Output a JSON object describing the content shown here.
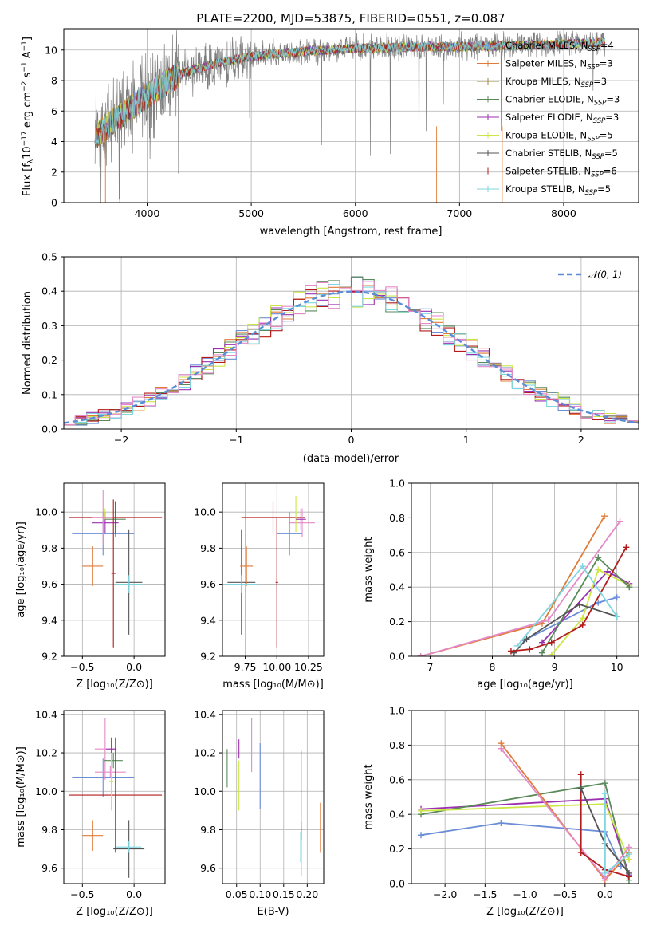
{
  "chart_data": [
    {
      "id": "spectrum",
      "type": "line",
      "title": "PLATE=2200, MJD=53875, FIBERID=0551, z=0.087",
      "xlabel": "wavelength [Angstrom, rest frame]",
      "ylabel": "Flux [f$_\\lambda$10$^{-17}$ erg cm$^{-2}$ s$^{-1}$ A$^{-1}$]",
      "xlim": [
        3200,
        8720
      ],
      "ylim": [
        0,
        11.4
      ],
      "xticks": [
        4000,
        5000,
        6000,
        7000,
        8000
      ],
      "yticks": [
        0,
        2,
        4,
        6,
        8,
        10
      ],
      "grid": true,
      "legend_position": "right",
      "continuum_model": {
        "x": [
          3500,
          3700,
          4000,
          4300,
          4600,
          5000,
          5500,
          6000,
          6500,
          7000,
          7500,
          8000,
          8400
        ],
        "y": [
          4.3,
          5.5,
          7.0,
          8.4,
          9.0,
          9.6,
          9.9,
          10.1,
          10.2,
          10.2,
          10.3,
          10.4,
          10.5
        ]
      },
      "series": [
        {
          "name": "Chabrier MILES, N$_{SSP}$=4",
          "color": "#6b8dd6",
          "marker": "+"
        },
        {
          "name": "Salpeter MILES, N$_{SSP}$=3",
          "color": "#e07b39",
          "marker": "+"
        },
        {
          "name": "Kroupa MILES, N$_{SSP}$=3",
          "color": "#a08a3c",
          "marker": "+"
        },
        {
          "name": "Chabrier ELODIE, N$_{SSP}$=3",
          "color": "#5a8a5a",
          "marker": "+"
        },
        {
          "name": "Salpeter ELODIE, N$_{SSP}$=3",
          "color": "#9b30b0",
          "marker": "+"
        },
        {
          "name": "Kroupa ELODIE, N$_{SSP}$=5",
          "color": "#cce645",
          "marker": "+"
        },
        {
          "name": "Chabrier STELIB, N$_{SSP}$=5",
          "color": "#555555",
          "marker": "+"
        },
        {
          "name": "Salpeter STELIB, N$_{SSP}$=6",
          "color": "#b31b1b",
          "marker": "+"
        },
        {
          "name": "Kroupa STELIB, N$_{SSP}$=5",
          "color": "#7fd6e0",
          "marker": "+"
        }
      ],
      "data_color": "#808080"
    },
    {
      "id": "residuals",
      "type": "histogram",
      "xlabel": "(data-model)/error",
      "ylabel": "Normed distribution",
      "xlim": [
        -2.5,
        2.5
      ],
      "ylim": [
        0,
        0.5
      ],
      "xticks": [
        -2,
        -1,
        0,
        1,
        2
      ],
      "xticklabels": [
        "−2",
        "−1",
        "0",
        "1",
        "2"
      ],
      "yticks": [
        0,
        0.1,
        0.2,
        0.3,
        0.4,
        0.5
      ],
      "yticklabels": [
        "0.0",
        "0.1",
        "0.2",
        "0.3",
        "0.4",
        "0.5"
      ],
      "grid": true,
      "legend": "$\\mathcal{N}(0,1)$",
      "legend_position": "top-right",
      "gaussian": {
        "mean": 0,
        "sigma": 1,
        "color": "#5b8dd6",
        "style": "dashed"
      },
      "bin_width": 0.1,
      "bin_start": -2.5,
      "histogram_colors": [
        "#6b8dd6",
        "#e07b39",
        "#5a8a5a",
        "#9b30b0",
        "#cce645",
        "#b31b1b",
        "#7fd6e0",
        "#e58ac8"
      ]
    },
    {
      "id": "age_vs_Z",
      "type": "scatter",
      "xlabel": "Z [log$_{10}$(Z/Z$_\\odot$)]",
      "ylabel": "age  [log$_{10}$(age/yr)]",
      "xlim": [
        -0.68,
        0.3
      ],
      "ylim": [
        9.2,
        10.16
      ],
      "xticks": [
        -0.5,
        0.0
      ],
      "xticklabels": [
        "−0.5",
        "0.0"
      ],
      "yticks": [
        9.2,
        9.4,
        9.6,
        9.8,
        10.0
      ],
      "yticklabels": [
        "9.2",
        "9.4",
        "9.6",
        "9.8",
        "10.0"
      ],
      "grid": true,
      "points": [
        {
          "x": -0.3,
          "y": 9.88,
          "xerr": 0.3,
          "yerr": 0.12,
          "color": "#6b8dd6"
        },
        {
          "x": -0.4,
          "y": 9.7,
          "xerr": 0.1,
          "yerr": 0.11,
          "color": "#e07b39"
        },
        {
          "x": -0.28,
          "y": 9.94,
          "xerr": 0.13,
          "yerr": 0.06,
          "color": "#9b30b0"
        },
        {
          "x": -0.28,
          "y": 9.99,
          "xerr": 0.1,
          "yerr": 0.03,
          "color": "#cce645"
        },
        {
          "x": -0.18,
          "y": 9.96,
          "xerr": 0.1,
          "yerr": 0.1,
          "color": "#5a8a5a"
        },
        {
          "x": -0.18,
          "y": 9.97,
          "xerr": 0.45,
          "yerr": 0.09,
          "color": "#b31b1b"
        },
        {
          "x": -0.05,
          "y": 9.61,
          "xerr": 0.13,
          "yerr": 0.29,
          "color": "#555555"
        },
        {
          "x": -0.05,
          "y": 9.6,
          "xerr": 0.12,
          "yerr": 0.05,
          "color": "#7fd6e0"
        },
        {
          "x": -0.3,
          "y": 9.97,
          "xerr": 0.1,
          "yerr": 0.15,
          "color": "#e58ac8"
        },
        {
          "x": -0.2,
          "y": 9.66,
          "xerr": 0.02,
          "yerr": 0.41,
          "color": "#b31b1b"
        }
      ]
    },
    {
      "id": "age_vs_mass",
      "type": "scatter",
      "xlabel": "mass [log$_{10}$(M/M$_\\odot$)]",
      "ylabel": "",
      "xlim": [
        9.57,
        10.37
      ],
      "ylim": [
        9.2,
        10.16
      ],
      "xticks": [
        9.75,
        10.0,
        10.25
      ],
      "xticklabels": [
        "9.75",
        "10.00",
        "10.25"
      ],
      "yticks": [
        9.2,
        9.4,
        9.6,
        9.8,
        10.0
      ],
      "yticklabels": [
        "9.2",
        "9.4",
        "9.6",
        "9.8",
        "10.0"
      ],
      "grid": true,
      "points": [
        {
          "x": 9.72,
          "y": 9.61,
          "xerr": 0.11,
          "yerr": 0.29,
          "color": "#555555"
        },
        {
          "x": 9.76,
          "y": 9.7,
          "xerr": 0.05,
          "yerr": 0.11,
          "color": "#e07b39"
        },
        {
          "x": 9.97,
          "y": 9.97,
          "xerr": 0.25,
          "yerr": 0.09,
          "color": "#b31b1b"
        },
        {
          "x": 10.1,
          "y": 9.88,
          "xerr": 0.1,
          "yerr": 0.12,
          "color": "#6b8dd6"
        },
        {
          "x": 10.2,
          "y": 9.94,
          "xerr": 0.1,
          "yerr": 0.08,
          "color": "#e58ac8"
        },
        {
          "x": 10.15,
          "y": 9.99,
          "xerr": 0.04,
          "yerr": 0.1,
          "color": "#cce645"
        },
        {
          "x": 10.19,
          "y": 9.96,
          "xerr": 0.04,
          "yerr": 0.06,
          "color": "#9b30b0"
        },
        {
          "x": 9.72,
          "y": 9.6,
          "xerr": 0.12,
          "yerr": 0.05,
          "color": "#7fd6e0"
        },
        {
          "x": 10.0,
          "y": 9.61,
          "xerr": 0.01,
          "yerr": 0.36,
          "color": "#b31b1b"
        }
      ]
    },
    {
      "id": "massweight_vs_age",
      "type": "line",
      "xlabel": "age  [log$_{10}$(age/yr)]",
      "ylabel": "mass weight",
      "xlim": [
        6.7,
        10.35
      ],
      "ylim": [
        0,
        1.0
      ],
      "xticks": [
        7,
        8,
        9,
        10
      ],
      "yticks": [
        0,
        0.2,
        0.4,
        0.6,
        0.8,
        1.0
      ],
      "yticklabels": [
        "0.0",
        "0.2",
        "0.4",
        "0.6",
        "0.8",
        "1.0"
      ],
      "grid": true,
      "series": [
        {
          "color": "#e07b39",
          "x": [
            6.85,
            8.8,
            9.8
          ],
          "y": [
            0.0,
            0.19,
            0.81
          ]
        },
        {
          "color": "#e58ac8",
          "x": [
            6.85,
            8.9,
            10.05
          ],
          "y": [
            0.0,
            0.21,
            0.78
          ]
        },
        {
          "color": "#6b8dd6",
          "x": [
            8.5,
            9.7,
            10.0
          ],
          "y": [
            0.09,
            0.31,
            0.34
          ]
        },
        {
          "color": "#9b30b0",
          "x": [
            8.8,
            9.85,
            10.2
          ],
          "y": [
            0.08,
            0.49,
            0.42
          ]
        },
        {
          "color": "#cce645",
          "x": [
            8.95,
            9.45,
            9.7,
            10.2
          ],
          "y": [
            0.01,
            0.22,
            0.5,
            0.41
          ]
        },
        {
          "color": "#5a8a5a",
          "x": [
            8.8,
            9.7,
            10.2
          ],
          "y": [
            0.02,
            0.57,
            0.4
          ]
        },
        {
          "color": "#555555",
          "x": [
            8.35,
            8.55,
            9.4,
            10.0
          ],
          "y": [
            0.02,
            0.1,
            0.3,
            0.23
          ]
        },
        {
          "color": "#b31b1b",
          "x": [
            8.3,
            8.6,
            8.95,
            9.45,
            10.15
          ],
          "y": [
            0.03,
            0.04,
            0.08,
            0.18,
            0.63
          ]
        },
        {
          "color": "#7fd6e0",
          "x": [
            8.4,
            9.45,
            10.0
          ],
          "y": [
            0.06,
            0.52,
            0.23
          ]
        }
      ]
    },
    {
      "id": "mass_vs_Z",
      "type": "scatter",
      "xlabel": "Z [log$_{10}$(Z/Z$_\\odot$)]",
      "ylabel": "mass [log$_{10}$(M/M$_\\odot$)]",
      "xlim": [
        -0.68,
        0.3
      ],
      "ylim": [
        9.52,
        10.42
      ],
      "xticks": [
        -0.5,
        0.0
      ],
      "xticklabels": [
        "−0.5",
        "0.0"
      ],
      "yticks": [
        9.6,
        9.8,
        10.0,
        10.2,
        10.4
      ],
      "yticklabels": [
        "9.6",
        "9.8",
        "10.0",
        "10.2",
        "10.4"
      ],
      "grid": true,
      "points": [
        {
          "x": -0.3,
          "y": 10.07,
          "xerr": 0.3,
          "yerr": 0.1,
          "color": "#6b8dd6"
        },
        {
          "x": -0.4,
          "y": 9.77,
          "xerr": 0.1,
          "yerr": 0.08,
          "color": "#e07b39"
        },
        {
          "x": -0.28,
          "y": 10.22,
          "xerr": 0.1,
          "yerr": 0.16,
          "color": "#e58ac8"
        },
        {
          "x": -0.22,
          "y": 10.22,
          "xerr": 0.05,
          "yerr": 0.06,
          "color": "#9b30b0"
        },
        {
          "x": -0.23,
          "y": 10.1,
          "xerr": 0.15,
          "yerr": 0.03,
          "color": "#e58ac8"
        },
        {
          "x": -0.2,
          "y": 10.16,
          "xerr": 0.09,
          "yerr": 0.04,
          "color": "#5a8a5a"
        },
        {
          "x": -0.18,
          "y": 9.98,
          "xerr": 0.45,
          "yerr": 0.3,
          "color": "#b31b1b"
        },
        {
          "x": -0.05,
          "y": 9.7,
          "xerr": 0.15,
          "yerr": 0.15,
          "color": "#555555"
        },
        {
          "x": -0.05,
          "y": 9.71,
          "xerr": 0.12,
          "yerr": 0.03,
          "color": "#7fd6e0"
        },
        {
          "x": -0.22,
          "y": 10.05,
          "xerr": 0.02,
          "yerr": 0.15,
          "color": "#cce645"
        }
      ]
    },
    {
      "id": "mass_vs_EBV",
      "type": "scatter",
      "xlabel": "E(B-V)",
      "ylabel": "",
      "xlim": [
        0.02,
        0.235
      ],
      "ylim": [
        9.52,
        10.42
      ],
      "xticks": [
        0.05,
        0.1,
        0.15,
        0.2
      ],
      "xticklabels": [
        "0.05",
        "0.10",
        "0.15",
        "0.20"
      ],
      "yticks": [
        9.6,
        9.8,
        10.0,
        10.2,
        10.4
      ],
      "yticklabels": [
        "9.6",
        "9.8",
        "10.0",
        "10.2",
        "10.4"
      ],
      "grid": true,
      "points": [
        {
          "x": 0.03,
          "y": 10.12,
          "xerr": 0,
          "yerr": 0.1,
          "color": "#5a8a5a"
        },
        {
          "x": 0.055,
          "y": 10.22,
          "xerr": 0,
          "yerr": 0.05,
          "color": "#9b30b0"
        },
        {
          "x": 0.055,
          "y": 10.03,
          "xerr": 0,
          "yerr": 0.13,
          "color": "#cce645"
        },
        {
          "x": 0.082,
          "y": 10.24,
          "xerr": 0,
          "yerr": 0.14,
          "color": "#e58ac8"
        },
        {
          "x": 0.1,
          "y": 10.08,
          "xerr": 0,
          "yerr": 0.17,
          "color": "#6b8dd6"
        },
        {
          "x": 0.187,
          "y": 9.98,
          "xerr": 0,
          "yerr": 0.23,
          "color": "#b31b1b"
        },
        {
          "x": 0.187,
          "y": 9.7,
          "xerr": 0,
          "yerr": 0.14,
          "color": "#555555"
        },
        {
          "x": 0.186,
          "y": 9.71,
          "xerr": 0,
          "yerr": 0.08,
          "color": "#7fd6e0"
        },
        {
          "x": 0.228,
          "y": 9.81,
          "xerr": 0,
          "yerr": 0.13,
          "color": "#e07b39"
        }
      ]
    },
    {
      "id": "massweight_vs_Z",
      "type": "line",
      "xlabel": "Z [log$_{10}$(Z/Z$_\\odot$)]",
      "ylabel": "mass weight",
      "xlim": [
        -2.42,
        0.42
      ],
      "ylim": [
        0,
        1.0
      ],
      "xticks": [
        -2.0,
        -1.5,
        -1.0,
        -0.5,
        0.0
      ],
      "xticklabels": [
        "−2.0",
        "−1.5",
        "−1.0",
        "−0.5",
        "0.0"
      ],
      "yticks": [
        0,
        0.2,
        0.4,
        0.6,
        0.8,
        1.0
      ],
      "yticklabels": [
        "0.0",
        "0.2",
        "0.4",
        "0.6",
        "0.8",
        "1.0"
      ],
      "grid": true,
      "series": [
        {
          "color": "#6b8dd6",
          "x": [
            -2.3,
            -1.3,
            0.0,
            0.2
          ],
          "y": [
            0.28,
            0.35,
            0.3,
            0.1
          ]
        },
        {
          "color": "#9b30b0",
          "x": [
            -2.3,
            0.0,
            0.3
          ],
          "y": [
            0.43,
            0.49,
            0.05
          ]
        },
        {
          "color": "#5a8a5a",
          "x": [
            -2.3,
            0.0,
            0.3
          ],
          "y": [
            0.4,
            0.58,
            0.02
          ]
        },
        {
          "color": "#cce645",
          "x": [
            -2.3,
            0.0,
            0.3
          ],
          "y": [
            0.42,
            0.46,
            0.14
          ]
        },
        {
          "color": "#e07b39",
          "x": [
            -1.3,
            0.0,
            0.3
          ],
          "y": [
            0.81,
            0.02,
            0.18
          ]
        },
        {
          "color": "#e58ac8",
          "x": [
            -1.3,
            0.0,
            0.3
          ],
          "y": [
            0.78,
            0.03,
            0.21
          ]
        },
        {
          "color": "#b31b1b",
          "x": [
            -0.3,
            -0.3,
            0.0,
            0.3
          ],
          "y": [
            0.63,
            0.18,
            0.08,
            0.04
          ]
        },
        {
          "color": "#555555",
          "x": [
            -0.3,
            0.0,
            0.3
          ],
          "y": [
            0.55,
            0.23,
            0.06
          ]
        },
        {
          "color": "#7fd6e0",
          "x": [
            0.0,
            0.0,
            0.3
          ],
          "y": [
            0.52,
            0.06,
            0.17
          ]
        }
      ]
    }
  ]
}
